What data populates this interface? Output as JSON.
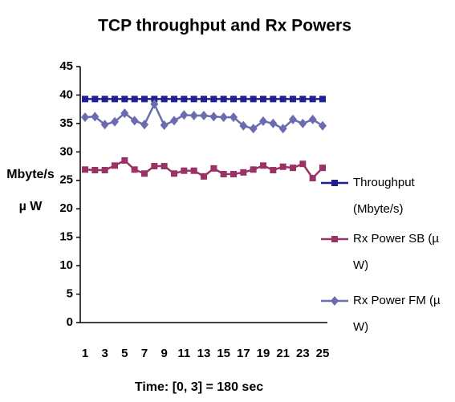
{
  "chart_data": {
    "type": "line",
    "title": "TCP throughput and Rx Powers",
    "xlabel": "Time: [0, 3] = 180 sec",
    "ylabel": [
      "Mbyte/s",
      "µ W"
    ],
    "categories": [
      1,
      null,
      3,
      null,
      5,
      null,
      7,
      null,
      9,
      null,
      11,
      null,
      13,
      null,
      15,
      null,
      17,
      null,
      19,
      null,
      21,
      null,
      23,
      null,
      25
    ],
    "ylim": [
      0,
      45
    ],
    "yticks": [
      0,
      5,
      10,
      15,
      20,
      25,
      30,
      35,
      40,
      45
    ],
    "grid": false,
    "legend": "right",
    "series": [
      {
        "name": "Throughput (Mbyte/s)",
        "color": "#1f1f8f",
        "marker": "square",
        "values": [
          39.3,
          39.3,
          39.3,
          39.3,
          39.3,
          39.3,
          39.3,
          39.3,
          39.3,
          39.3,
          39.3,
          39.3,
          39.3,
          39.3,
          39.3,
          39.3,
          39.3,
          39.3,
          39.3,
          39.3,
          39.3,
          39.3,
          39.3,
          39.3,
          39.3
        ]
      },
      {
        "name": "Rx Power SB (µ W)",
        "color": "#993366",
        "marker": "square",
        "values": [
          26.9,
          26.8,
          26.8,
          27.6,
          28.5,
          26.9,
          26.2,
          27.5,
          27.5,
          26.2,
          26.7,
          26.7,
          25.7,
          27.1,
          26.1,
          26.1,
          26.4,
          26.9,
          27.6,
          26.8,
          27.4,
          27.2,
          27.9,
          25.4,
          27.2
        ]
      },
      {
        "name": "Rx Power FM (µ W)",
        "color": "#6b6bb0",
        "marker": "diamond",
        "values": [
          36.1,
          36.2,
          34.8,
          35.3,
          36.8,
          35.5,
          34.8,
          38.4,
          34.7,
          35.5,
          36.5,
          36.4,
          36.4,
          36.2,
          36.1,
          36.1,
          34.6,
          34.1,
          35.4,
          35.0,
          34.1,
          35.7,
          35.0,
          35.7,
          34.6
        ]
      }
    ]
  }
}
